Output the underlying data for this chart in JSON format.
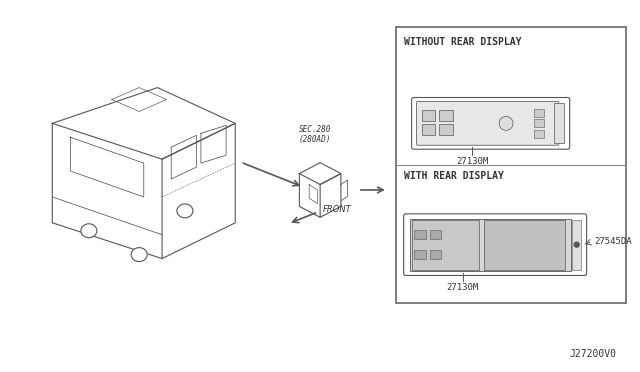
{
  "bg_color": "#f5f5f5",
  "diagram_title": "",
  "part_number_bottom_right": "J27200V0",
  "sec_label": "SEC.280\n(280AD)",
  "front_label": "FRONT",
  "without_rear_label": "WITHOUT REAR DISPLAY",
  "with_rear_label": "WITH REAR DISPLAY",
  "part1_label": "27130M",
  "part2_label": "27130M",
  "part3_label": "27545DA",
  "line_color": "#555555",
  "text_color": "#333333",
  "box_bg": "#f0f0f0"
}
